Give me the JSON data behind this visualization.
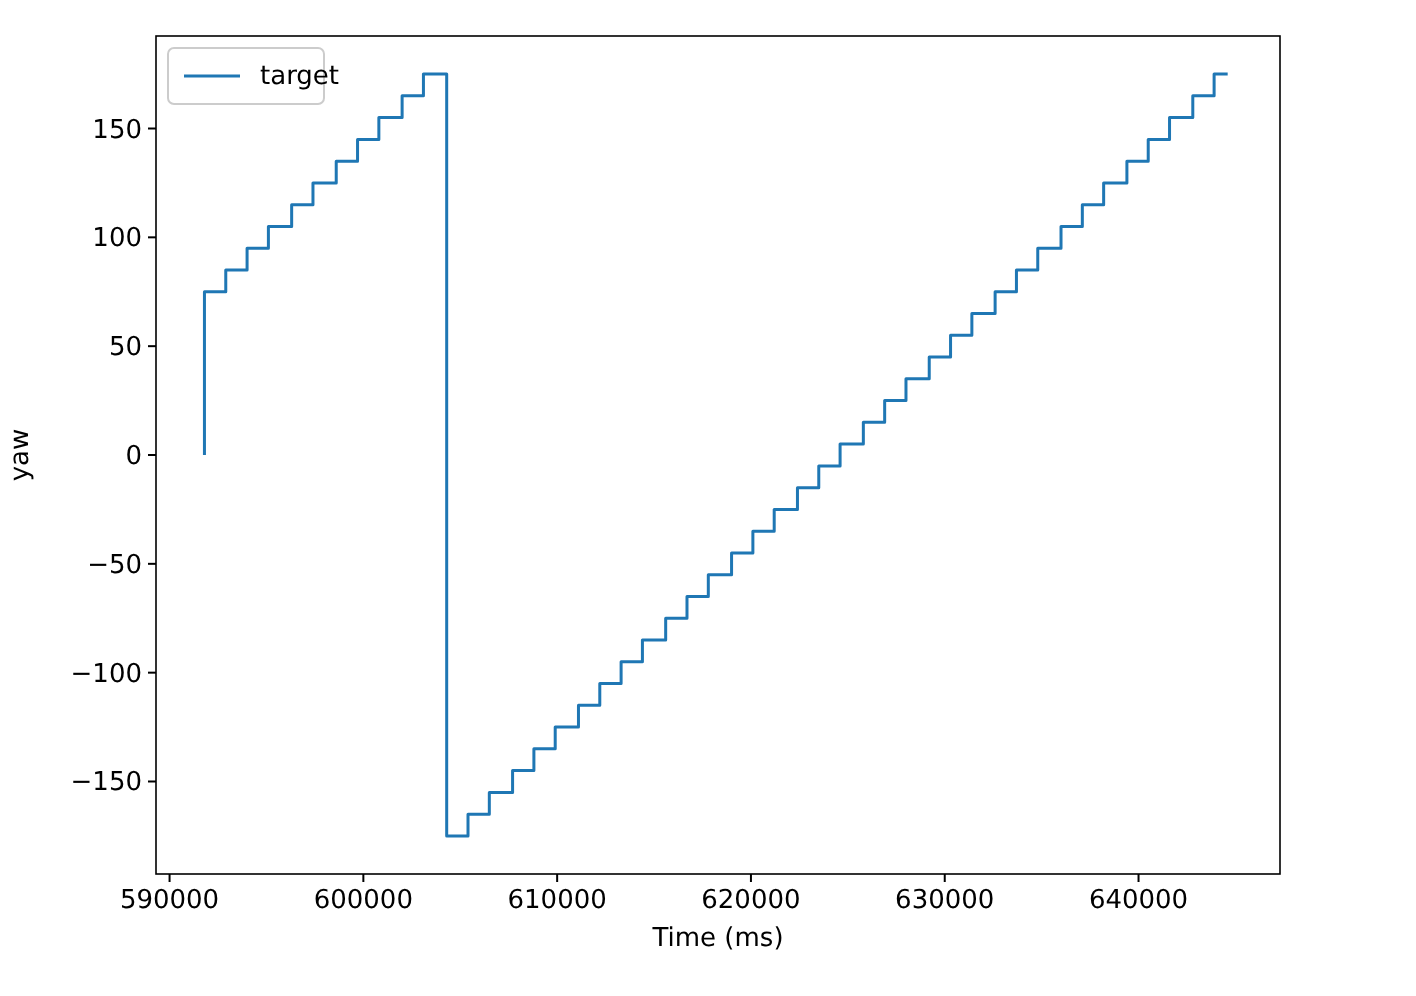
{
  "chart_data": {
    "type": "step",
    "xlabel": "Time (ms)",
    "ylabel": "yaw",
    "x": [
      591800,
      591800,
      592900,
      594000,
      595100,
      596300,
      597400,
      598600,
      599700,
      600800,
      602000,
      603100,
      604300,
      605400,
      606500,
      607700,
      608800,
      609900,
      611100,
      612200,
      613300,
      614400,
      615600,
      616700,
      617800,
      619000,
      620100,
      621200,
      622400,
      623500,
      624600,
      625800,
      626900,
      628000,
      629200,
      630300,
      631400,
      632600,
      633700,
      634800,
      636000,
      637100,
      638200,
      639400,
      640500,
      641600,
      642800,
      643900,
      644600
    ],
    "series": [
      {
        "name": "target",
        "color": "#1f77b4",
        "values": [
          0,
          75,
          85,
          95,
          105,
          115,
          125,
          135,
          145,
          155,
          165,
          175,
          -175,
          -165,
          -155,
          -145,
          -135,
          -125,
          -115,
          -105,
          -95,
          -85,
          -75,
          -65,
          -55,
          -45,
          -35,
          -25,
          -15,
          -5,
          5,
          15,
          25,
          35,
          45,
          55,
          65,
          75,
          85,
          95,
          105,
          115,
          125,
          135,
          145,
          155,
          165,
          175,
          175
        ]
      }
    ],
    "xlim": [
      589300,
      647300
    ],
    "xticks": [
      590000,
      600000,
      610000,
      620000,
      630000,
      640000
    ],
    "ylim": [
      -192.5,
      192.5
    ],
    "yticks": [
      -150,
      -100,
      -50,
      0,
      50,
      100,
      150
    ],
    "grid": false,
    "legend": "top left",
    "line_style": "solid",
    "marker": "none"
  }
}
